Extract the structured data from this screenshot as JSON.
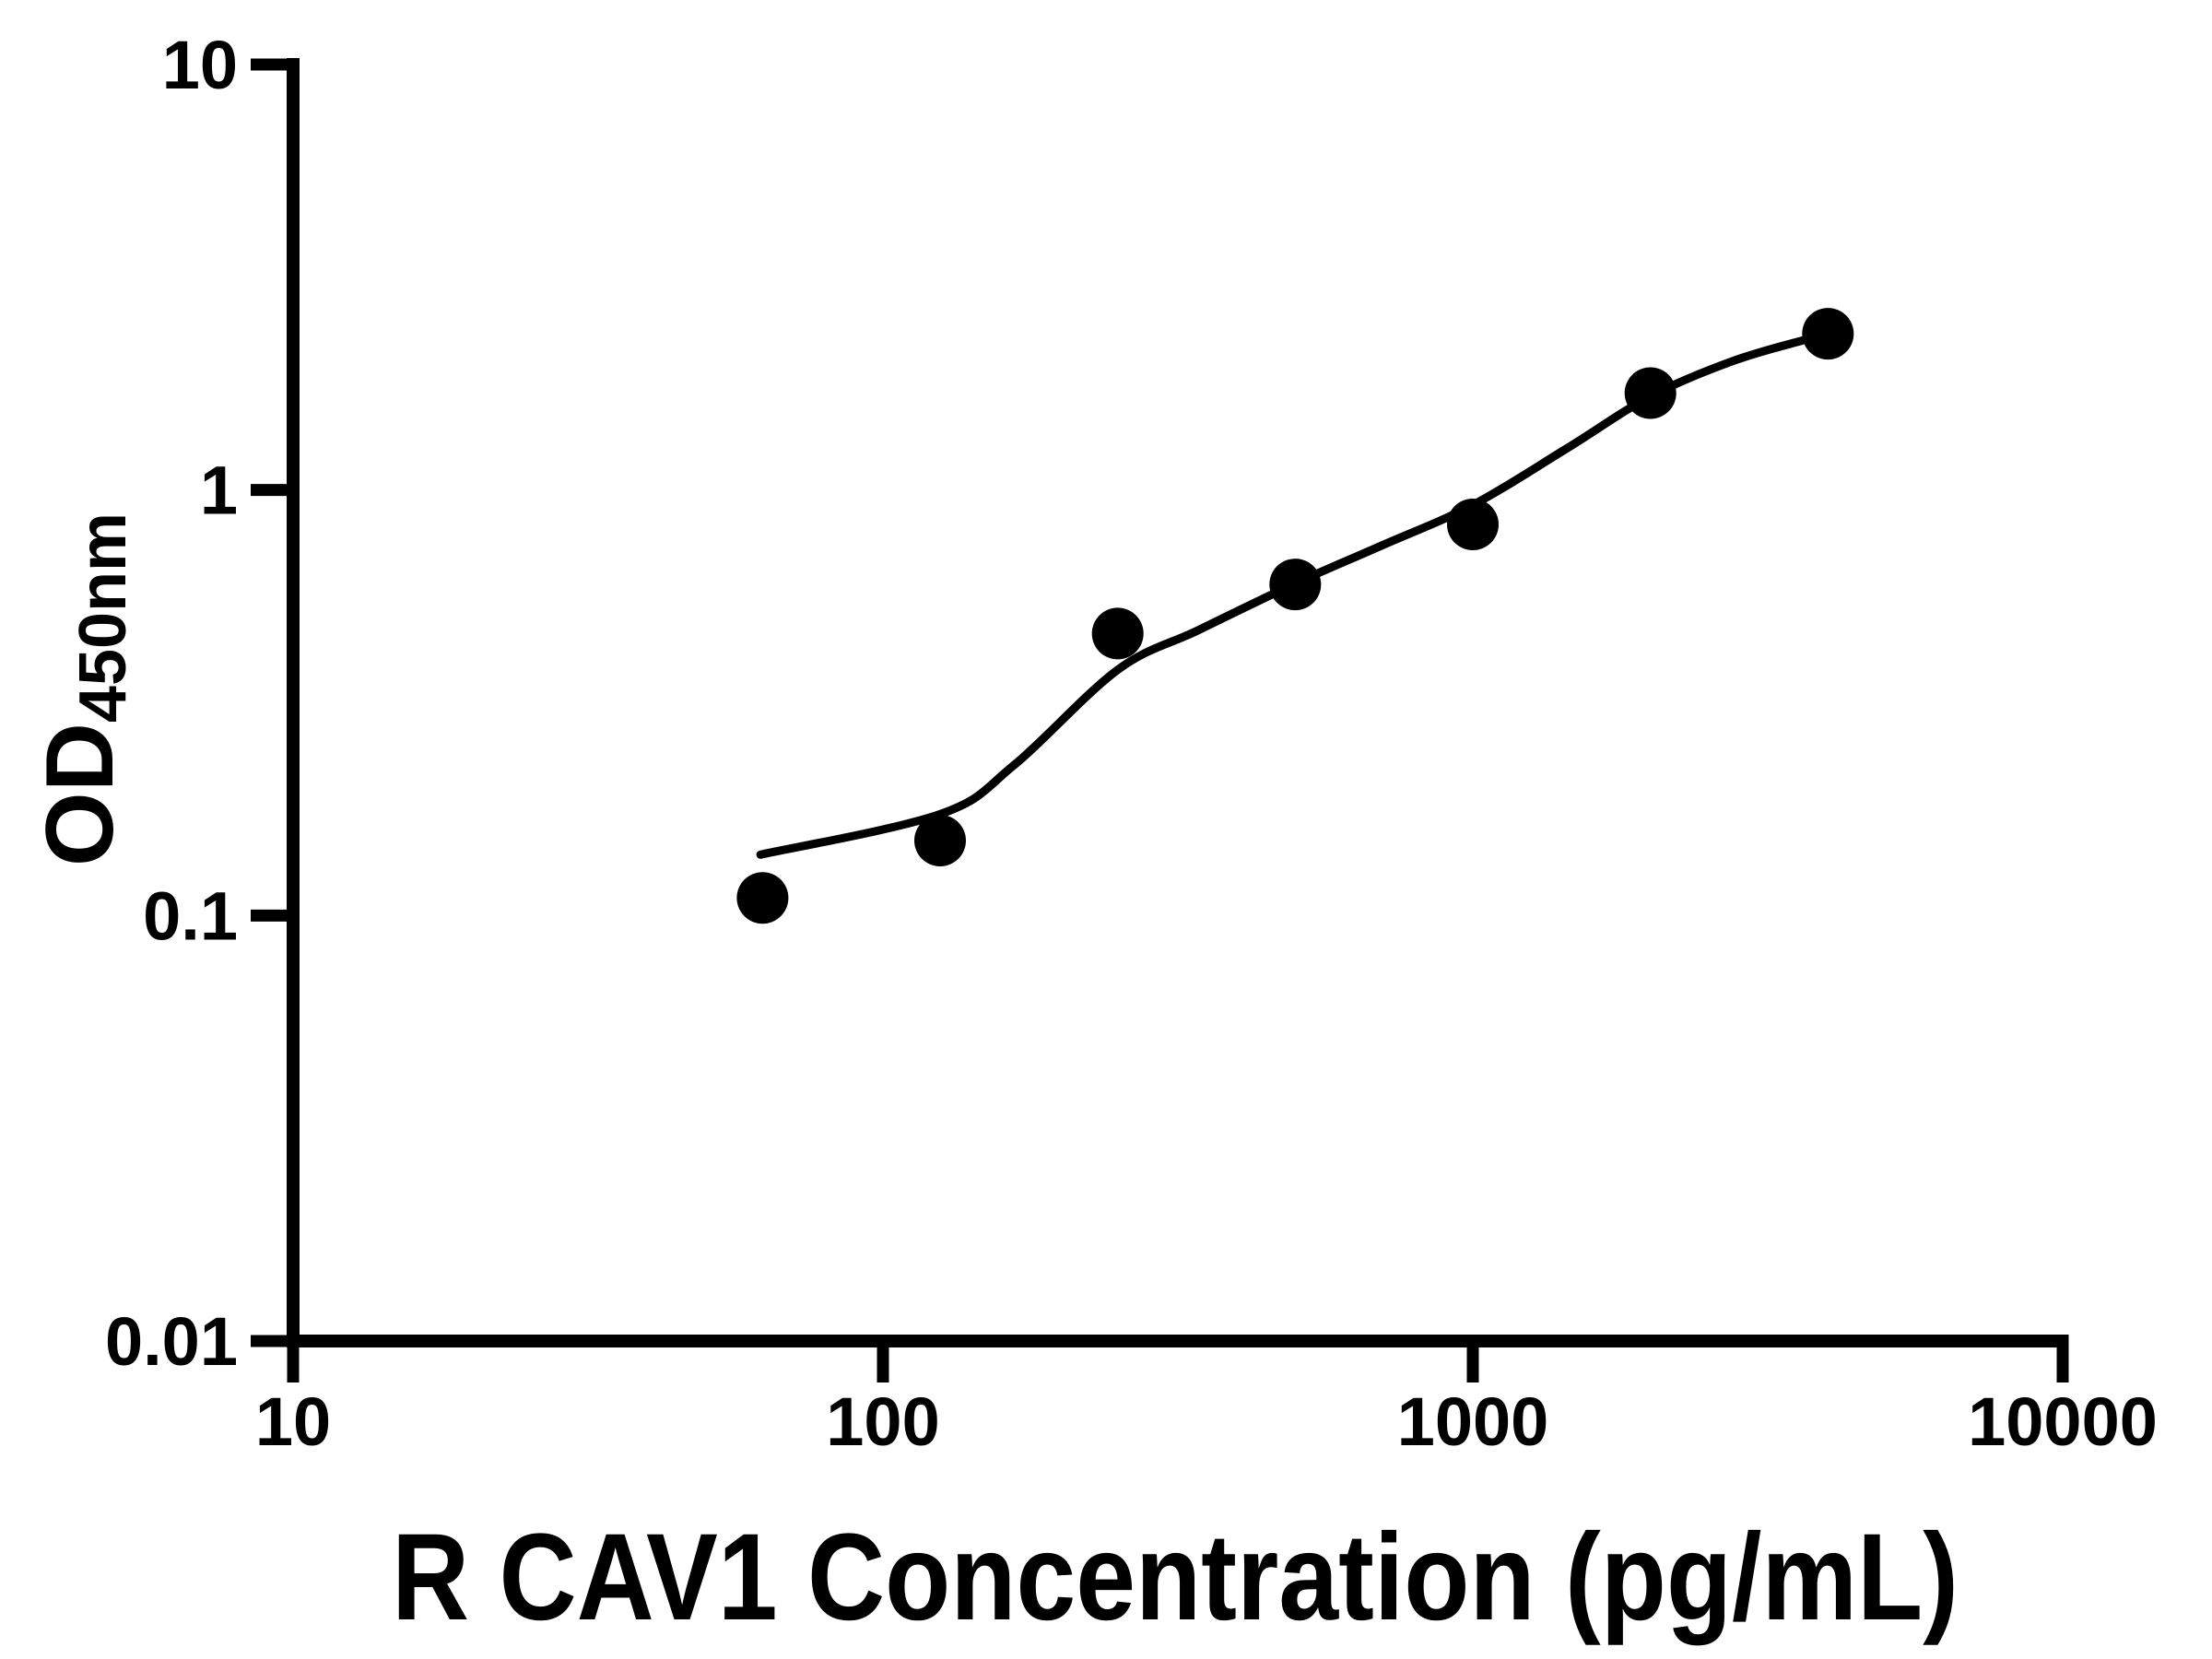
{
  "chart_data": {
    "type": "scatter",
    "title": "",
    "xlabel": "R CAV1 Concentration (pg/mL)",
    "ylabel_main": "OD",
    "ylabel_subscript": "450nm",
    "x_scale": "log10",
    "y_scale": "log10",
    "xlim": [
      10,
      10000
    ],
    "ylim": [
      0.01,
      10
    ],
    "grid": false,
    "legend": null,
    "x_ticks": [
      {
        "value": 10,
        "label": "10"
      },
      {
        "value": 100,
        "label": "100"
      },
      {
        "value": 1000,
        "label": "1000"
      },
      {
        "value": 10000,
        "label": "10000"
      }
    ],
    "y_ticks": [
      {
        "value": 10,
        "label": "10"
      },
      {
        "value": 1,
        "label": "1"
      },
      {
        "value": 0.1,
        "label": "0.1"
      },
      {
        "value": 0.01,
        "label": "0.01"
      }
    ],
    "series": [
      {
        "marker": "filled-circle",
        "color": "#000000",
        "points": [
          {
            "x": 62.5,
            "y": 0.11
          },
          {
            "x": 125,
            "y": 0.15
          },
          {
            "x": 250,
            "y": 0.46
          },
          {
            "x": 500,
            "y": 0.6
          },
          {
            "x": 1000,
            "y": 0.83
          },
          {
            "x": 2000,
            "y": 1.69
          },
          {
            "x": 4000,
            "y": 2.33
          }
        ]
      }
    ],
    "fit_curve": {
      "color": "#000000",
      "x_range": [
        62,
        4000
      ],
      "samples": [
        {
          "x": 62,
          "y": 0.139
        },
        {
          "x": 125,
          "y": 0.173
        },
        {
          "x": 167,
          "y": 0.226
        },
        {
          "x": 250,
          "y": 0.378
        },
        {
          "x": 342,
          "y": 0.468
        },
        {
          "x": 500,
          "y": 0.603
        },
        {
          "x": 700,
          "y": 0.74
        },
        {
          "x": 1000,
          "y": 0.922
        },
        {
          "x": 1440,
          "y": 1.25
        },
        {
          "x": 2000,
          "y": 1.66
        },
        {
          "x": 2760,
          "y": 2.01
        },
        {
          "x": 3680,
          "y": 2.26
        },
        {
          "x": 4000,
          "y": 2.33
        }
      ]
    },
    "colors": {
      "ink": "#000000",
      "background": "#ffffff"
    }
  }
}
